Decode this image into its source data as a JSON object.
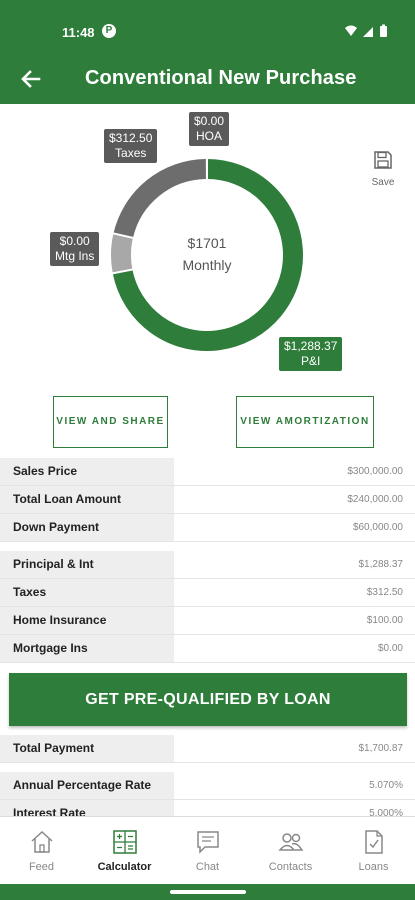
{
  "status_bar": {
    "time": "11:48",
    "app_badge": "P"
  },
  "header": {
    "title": "Conventional New Purchase"
  },
  "chart_data": {
    "type": "pie",
    "categories": [
      "P&I",
      "Taxes",
      "HOA",
      "Mtg Ins"
    ],
    "values": [
      1288.37,
      312.5,
      0.0,
      0.0
    ],
    "labels": [
      "$1,288.37\nP&I",
      "$312.50\nTaxes",
      "$0.00\nHOA",
      "$0.00\nMtg Ins"
    ],
    "center_value": "$1701",
    "center_label": "Monthly",
    "colors": {
      "pi": "#2e7d3a",
      "taxes": "#6d6d6d",
      "hoa": "#6d6d6d",
      "mtg_ins": "#a8a8a8"
    }
  },
  "tags": {
    "hoa": {
      "amount": "$0.00",
      "name": "HOA"
    },
    "taxes": {
      "amount": "$312.50",
      "name": "Taxes"
    },
    "mtg_ins": {
      "amount": "$0.00",
      "name": "Mtg Ins"
    },
    "pi": {
      "amount": "$1,288.37",
      "name": "P&I"
    }
  },
  "save": {
    "label": "Save"
  },
  "actions": {
    "view_share": "VIEW AND SHARE",
    "view_amortization": "VIEW AMORTIZATION"
  },
  "loan_summary": [
    {
      "label": "Sales Price",
      "value": "$300,000.00"
    },
    {
      "label": "Total Loan Amount",
      "value": "$240,000.00"
    },
    {
      "label": "Down Payment",
      "value": "$60,000.00"
    }
  ],
  "payment_breakdown": [
    {
      "label": "Principal & Int",
      "value": "$1,288.37"
    },
    {
      "label": "Taxes",
      "value": "$312.50"
    },
    {
      "label": "Home Insurance",
      "value": "$100.00"
    },
    {
      "label": "Mortgage Ins",
      "value": "$0.00"
    }
  ],
  "cta": {
    "label": "GET PRE-QUALIFIED BY LOAN"
  },
  "total": {
    "label": "Total Payment",
    "value": "$1,700.87"
  },
  "rates": [
    {
      "label": "Annual Percentage Rate",
      "value": "5.070%"
    },
    {
      "label": "Interest Rate",
      "value": "5.000%"
    }
  ],
  "bottom_nav": [
    {
      "label": "Feed",
      "icon": "home-icon"
    },
    {
      "label": "Calculator",
      "icon": "calculator-icon",
      "active": true
    },
    {
      "label": "Chat",
      "icon": "chat-icon"
    },
    {
      "label": "Contacts",
      "icon": "contacts-icon"
    },
    {
      "label": "Loans",
      "icon": "document-check-icon"
    }
  ]
}
